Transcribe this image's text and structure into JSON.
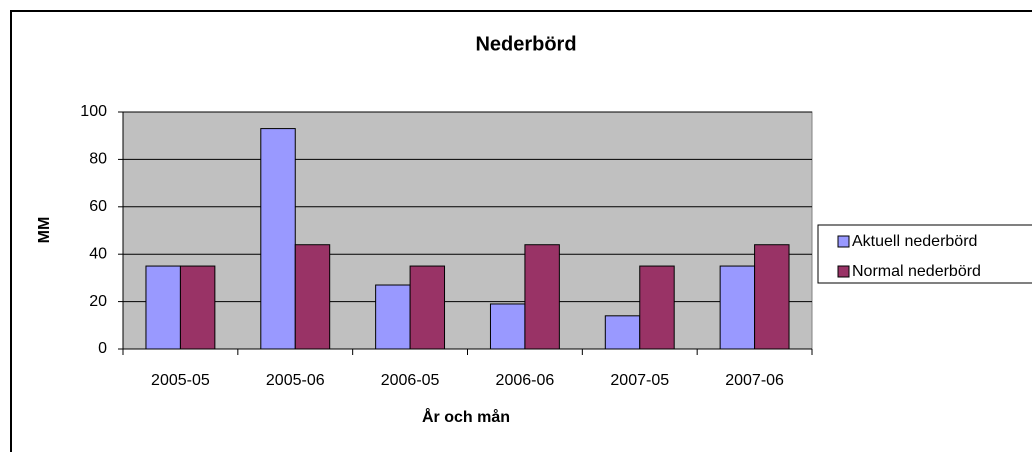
{
  "chart_data": {
    "type": "bar",
    "title": "Nederbörd",
    "x_label": "År och mån",
    "y_label": "MM",
    "categories": [
      "2005-05",
      "2005-06",
      "2006-05",
      "2006-06",
      "2007-05",
      "2007-06"
    ],
    "series": [
      {
        "name": "Aktuell nederbörd",
        "color": "#9999ff",
        "values": [
          35,
          93,
          27,
          19,
          14,
          35
        ]
      },
      {
        "name": "Normal nederbörd",
        "color": "#993366",
        "values": [
          35,
          44,
          35,
          44,
          35,
          44
        ]
      }
    ],
    "ylim": [
      0,
      100
    ],
    "yticks": [
      0,
      20,
      40,
      60,
      80,
      100
    ],
    "grid": true,
    "legend": "right"
  }
}
